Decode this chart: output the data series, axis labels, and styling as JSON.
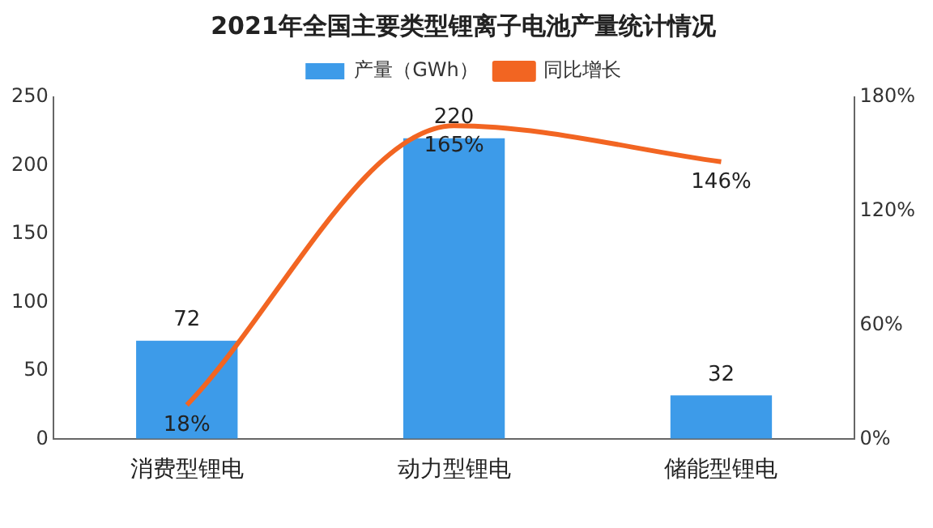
{
  "chart_data": {
    "type": "bar",
    "title": "2021年全国主要类型锂离子电池产量统计情况",
    "categories": [
      "消费型锂电",
      "动力型锂电",
      "储能型锂电"
    ],
    "series": [
      {
        "name": "产量（GWh）",
        "color": "#3d9be9",
        "values": [
          72,
          220,
          32
        ],
        "value_labels": [
          "72",
          "220",
          "32"
        ]
      },
      {
        "name": "同比增长",
        "type": "line",
        "axis": "y2",
        "color": "#f26522",
        "values": [
          18,
          165,
          146
        ],
        "value_labels": [
          "18%",
          "165%",
          "146%"
        ]
      }
    ],
    "ylim": [
      0,
      250
    ],
    "yticks": [
      0,
      50,
      100,
      150,
      200,
      250
    ],
    "y2lim": [
      0,
      180
    ],
    "y2ticks": [
      {
        "value": 0,
        "label": "0%"
      },
      {
        "value": 60,
        "label": "60%"
      },
      {
        "value": 120,
        "label": "120%"
      },
      {
        "value": 180,
        "label": "180%"
      }
    ],
    "grid": false,
    "legend": "top",
    "marker": "none",
    "line_style": "solid"
  }
}
